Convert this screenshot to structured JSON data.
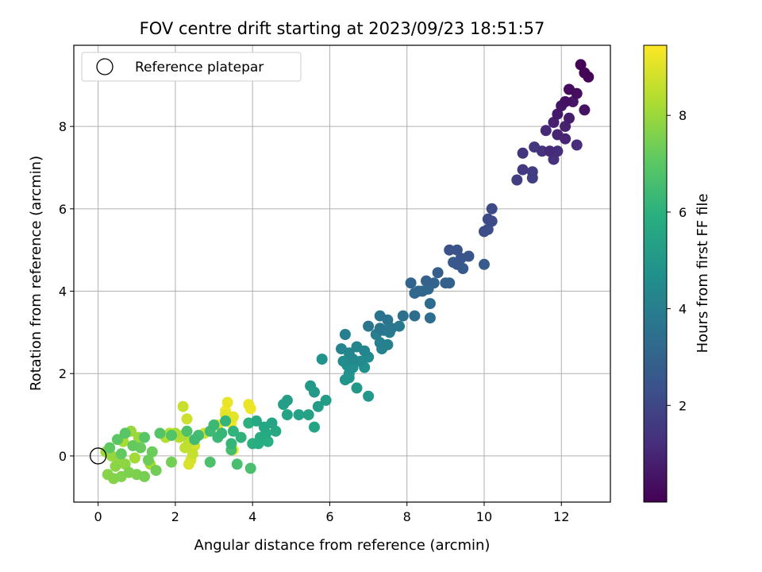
{
  "chart_data": {
    "type": "scatter",
    "title": "FOV centre drift starting at 2023/09/23 18:51:57",
    "xlabel": "Angular distance from reference (arcmin)",
    "ylabel": "Rotation from reference (arcmin)",
    "xlim": [
      -0.63,
      13.27
    ],
    "ylim": [
      -1.12,
      9.97
    ],
    "xticks": [
      0,
      2,
      4,
      6,
      8,
      10,
      12
    ],
    "yticks": [
      0,
      2,
      4,
      6,
      8
    ],
    "grid": true,
    "legend": {
      "position": "top-left",
      "entries": [
        {
          "label": "Reference platepar"
        }
      ]
    },
    "reference_point": {
      "x": 0,
      "y": 0
    },
    "colorbar": {
      "label": "Hours from first FF file",
      "colormap": "viridis",
      "range": [
        0,
        9.45
      ],
      "ticks": [
        2,
        4,
        6,
        8
      ]
    },
    "series": [
      {
        "name": "",
        "points": [
          [
            12.5,
            9.5,
            0.05
          ],
          [
            12.6,
            9.3,
            0.1
          ],
          [
            12.7,
            9.2,
            0.15
          ],
          [
            12.2,
            8.9,
            0.3
          ],
          [
            12.4,
            8.8,
            0.35
          ],
          [
            12.1,
            8.6,
            0.4
          ],
          [
            12.6,
            8.4,
            0.5
          ],
          [
            12.0,
            8.5,
            0.55
          ],
          [
            12.3,
            8.6,
            0.6
          ],
          [
            11.9,
            8.3,
            0.7
          ],
          [
            12.2,
            8.2,
            0.75
          ],
          [
            11.8,
            8.1,
            0.85
          ],
          [
            12.1,
            8.0,
            0.9
          ],
          [
            11.9,
            7.8,
            0.95
          ],
          [
            12.1,
            7.7,
            1.0
          ],
          [
            11.6,
            7.9,
            1.1
          ],
          [
            11.7,
            7.4,
            1.15
          ],
          [
            12.4,
            7.55,
            1.2
          ],
          [
            11.9,
            7.4,
            1.25
          ],
          [
            11.8,
            7.2,
            1.35
          ],
          [
            11.5,
            7.4,
            1.4
          ],
          [
            11.0,
            7.35,
            1.45
          ],
          [
            11.3,
            7.5,
            1.55
          ],
          [
            11.0,
            6.95,
            1.6
          ],
          [
            11.25,
            6.9,
            1.7
          ],
          [
            10.85,
            6.7,
            1.75
          ],
          [
            11.25,
            6.75,
            1.8
          ],
          [
            10.2,
            6.0,
            2.1
          ],
          [
            10.1,
            5.75,
            2.15
          ],
          [
            10.2,
            5.7,
            2.2
          ],
          [
            10.0,
            5.45,
            2.25
          ],
          [
            10.1,
            5.5,
            2.3
          ],
          [
            9.1,
            5.0,
            2.4
          ],
          [
            9.3,
            5.0,
            2.45
          ],
          [
            9.4,
            4.8,
            2.5
          ],
          [
            9.6,
            4.85,
            2.55
          ],
          [
            9.3,
            4.65,
            2.6
          ],
          [
            9.2,
            4.7,
            2.65
          ],
          [
            9.45,
            4.55,
            2.7
          ],
          [
            10.0,
            4.65,
            2.75
          ],
          [
            8.8,
            4.45,
            2.85
          ],
          [
            9.0,
            4.2,
            2.9
          ],
          [
            9.1,
            4.2,
            2.95
          ],
          [
            8.5,
            4.25,
            3.0
          ],
          [
            8.7,
            4.2,
            3.05
          ],
          [
            8.1,
            4.2,
            3.1
          ],
          [
            8.4,
            4.0,
            3.15
          ],
          [
            8.55,
            4.05,
            3.2
          ],
          [
            8.2,
            3.95,
            3.25
          ],
          [
            8.3,
            4.0,
            3.3
          ],
          [
            8.6,
            3.7,
            3.35
          ],
          [
            8.2,
            3.4,
            3.4
          ],
          [
            8.6,
            3.35,
            3.45
          ],
          [
            7.9,
            3.4,
            3.5
          ],
          [
            7.3,
            3.4,
            3.6
          ],
          [
            7.5,
            3.3,
            3.65
          ],
          [
            7.0,
            3.15,
            3.7
          ],
          [
            7.3,
            3.1,
            3.75
          ],
          [
            7.6,
            3.1,
            3.8
          ],
          [
            7.8,
            3.15,
            3.85
          ],
          [
            7.4,
            3.05,
            3.9
          ],
          [
            7.55,
            3.0,
            3.95
          ],
          [
            7.2,
            2.95,
            4.0
          ],
          [
            6.4,
            2.95,
            4.05
          ],
          [
            7.3,
            2.75,
            4.1
          ],
          [
            7.5,
            2.7,
            4.15
          ],
          [
            7.35,
            2.6,
            4.2
          ],
          [
            6.3,
            2.6,
            4.25
          ],
          [
            6.7,
            2.65,
            4.3
          ],
          [
            6.9,
            2.55,
            4.35
          ],
          [
            6.5,
            2.5,
            4.4
          ],
          [
            6.6,
            2.35,
            4.45
          ],
          [
            7.0,
            2.4,
            4.5
          ],
          [
            6.8,
            2.3,
            4.55
          ],
          [
            6.35,
            2.3,
            4.6
          ],
          [
            6.45,
            2.2,
            4.65
          ],
          [
            6.6,
            2.15,
            4.7
          ],
          [
            6.9,
            2.15,
            4.75
          ],
          [
            5.8,
            2.35,
            4.8
          ],
          [
            6.5,
            2.0,
            4.85
          ],
          [
            6.4,
            1.85,
            4.9
          ],
          [
            6.5,
            1.9,
            4.95
          ],
          [
            6.7,
            1.65,
            5.0
          ],
          [
            7.0,
            1.45,
            5.05
          ],
          [
            5.5,
            1.7,
            5.1
          ],
          [
            5.6,
            1.55,
            5.15
          ],
          [
            5.9,
            1.35,
            5.2
          ],
          [
            5.7,
            1.2,
            5.25
          ],
          [
            4.9,
            1.35,
            5.3
          ],
          [
            4.8,
            1.25,
            5.35
          ],
          [
            5.2,
            1.0,
            5.4
          ],
          [
            5.45,
            1.0,
            5.45
          ],
          [
            5.6,
            0.7,
            5.5
          ],
          [
            4.9,
            1.0,
            5.55
          ],
          [
            4.5,
            0.8,
            5.6
          ],
          [
            4.3,
            0.7,
            5.65
          ],
          [
            4.6,
            0.6,
            5.7
          ],
          [
            4.1,
            0.85,
            5.75
          ],
          [
            4.35,
            0.55,
            5.8
          ],
          [
            4.2,
            0.45,
            5.85
          ],
          [
            4.15,
            0.3,
            5.9
          ],
          [
            4.4,
            0.35,
            5.95
          ],
          [
            4.0,
            0.3,
            6.0
          ],
          [
            3.9,
            0.8,
            6.05
          ],
          [
            3.7,
            0.45,
            6.1
          ],
          [
            3.5,
            0.6,
            6.15
          ],
          [
            3.3,
            0.85,
            6.2
          ],
          [
            3.45,
            0.3,
            6.25
          ],
          [
            3.2,
            0.55,
            6.3
          ],
          [
            3.1,
            0.45,
            6.35
          ],
          [
            3.0,
            0.75,
            6.4
          ],
          [
            2.9,
            0.6,
            6.45
          ],
          [
            2.5,
            0.4,
            6.5
          ],
          [
            2.6,
            0.5,
            6.55
          ],
          [
            3.45,
            0.15,
            6.6
          ],
          [
            3.6,
            -0.2,
            6.65
          ],
          [
            3.95,
            -0.3,
            6.7
          ],
          [
            2.9,
            -0.15,
            6.75
          ],
          [
            2.3,
            0.6,
            6.8
          ],
          [
            1.9,
            0.5,
            6.85
          ],
          [
            1.6,
            0.55,
            6.9
          ],
          [
            1.2,
            0.45,
            6.95
          ],
          [
            0.7,
            0.55,
            7.0
          ],
          [
            0.5,
            0.4,
            7.05
          ],
          [
            0.3,
            0.2,
            7.1
          ],
          [
            0.6,
            0.05,
            7.15
          ],
          [
            0.9,
            0.25,
            7.2
          ],
          [
            1.1,
            0.2,
            7.25
          ],
          [
            1.4,
            0.1,
            7.3
          ],
          [
            1.3,
            -0.1,
            7.35
          ],
          [
            1.5,
            -0.35,
            7.4
          ],
          [
            1.9,
            -0.15,
            7.45
          ],
          [
            1.2,
            -0.5,
            7.5
          ],
          [
            1.0,
            -0.45,
            7.55
          ],
          [
            0.8,
            -0.4,
            7.6
          ],
          [
            0.6,
            -0.5,
            7.65
          ],
          [
            0.4,
            -0.55,
            7.7
          ],
          [
            0.25,
            -0.45,
            7.75
          ],
          [
            0.45,
            -0.25,
            7.8
          ],
          [
            0.7,
            -0.2,
            7.85
          ],
          [
            0.55,
            -0.05,
            7.9
          ],
          [
            0.35,
            0.0,
            7.95
          ],
          [
            0.85,
            0.6,
            8.0
          ],
          [
            1.05,
            0.45,
            8.05
          ],
          [
            0.2,
            0.1,
            8.1
          ],
          [
            0.95,
            -0.05,
            8.15
          ],
          [
            1.35,
            -0.2,
            8.2
          ],
          [
            0.65,
            0.35,
            8.25
          ],
          [
            2.0,
            0.55,
            8.3
          ],
          [
            2.2,
            0.5,
            8.35
          ],
          [
            1.75,
            0.45,
            8.4
          ],
          [
            1.85,
            0.55,
            8.45
          ],
          [
            2.1,
            0.45,
            8.5
          ],
          [
            2.35,
            0.35,
            8.55
          ],
          [
            2.25,
            0.2,
            8.6
          ],
          [
            2.45,
            0.05,
            8.65
          ],
          [
            2.2,
            1.2,
            8.7
          ],
          [
            2.3,
            0.9,
            8.75
          ],
          [
            2.75,
            0.55,
            8.8
          ],
          [
            2.5,
            0.25,
            8.85
          ],
          [
            2.4,
            -0.1,
            8.9
          ],
          [
            2.35,
            -0.2,
            8.95
          ],
          [
            3.1,
            0.75,
            9.0
          ],
          [
            3.3,
            1.0,
            9.05
          ],
          [
            3.5,
            0.95,
            9.1
          ],
          [
            3.35,
            1.3,
            9.15
          ],
          [
            3.9,
            1.25,
            9.2
          ],
          [
            3.95,
            1.15,
            9.25
          ],
          [
            3.3,
            1.1,
            9.3
          ],
          [
            3.45,
            0.8,
            9.35
          ],
          [
            3.5,
            0.15,
            9.4
          ]
        ]
      }
    ]
  }
}
